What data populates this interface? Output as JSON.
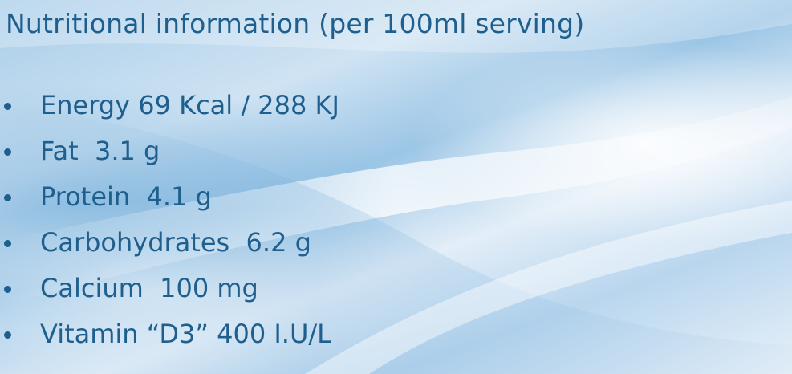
{
  "title": "Nutritional information (per 100ml serving)",
  "items": [
    {
      "text": "Energy 69 Kcal / 288 KJ"
    },
    {
      "text": "Fat  3.1 g"
    },
    {
      "text": "Protein  4.1 g"
    },
    {
      "text": "Carbohydrates  6.2 g"
    },
    {
      "text": "Calcium  100 mg"
    },
    {
      "text": "Vitamin “D3” 400 I.U/L"
    }
  ],
  "colors": {
    "text": "#1f5f8e",
    "background_light": "#e8f1f9",
    "background_blue": "#9cc6e6"
  }
}
